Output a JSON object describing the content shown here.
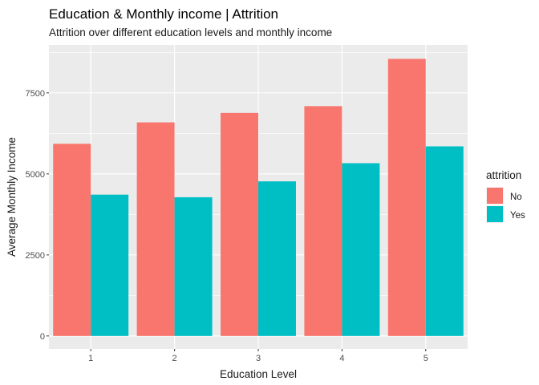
{
  "chart_data": {
    "type": "bar",
    "title": "Education & Monthly income | Attrition",
    "subtitle": "Attrition over different education levels and monthly income",
    "xlabel": "Education Level",
    "ylabel": "Average Monthly Income",
    "categories": [
      "1",
      "2",
      "3",
      "4",
      "5"
    ],
    "series": [
      {
        "name": "No",
        "color": "#F8766D",
        "values": [
          5930,
          6590,
          6880,
          7090,
          8550
        ]
      },
      {
        "name": "Yes",
        "color": "#00BFC4",
        "values": [
          4360,
          4280,
          4770,
          5330,
          5850
        ]
      }
    ],
    "ylim": [
      -400,
      8980
    ],
    "yticks": [
      0,
      2500,
      5000,
      7500
    ],
    "ytick_labels": [
      "0",
      "2500",
      "5000",
      "7500"
    ],
    "grid": true,
    "panel_background": "#EBEBEB",
    "grid_color": "#FFFFFF",
    "legend": {
      "title": "attrition",
      "placement": "right"
    }
  }
}
